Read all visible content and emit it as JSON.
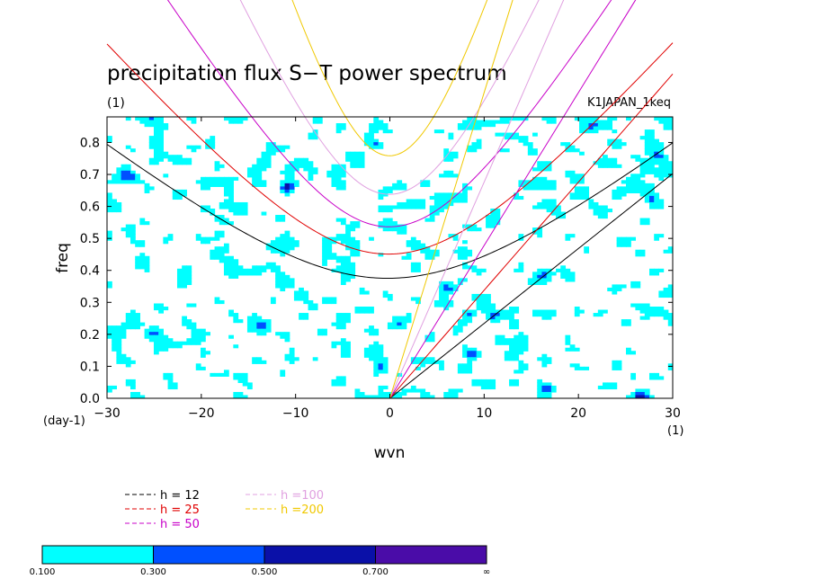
{
  "chart_data": {
    "type": "heatmap",
    "title": "precipitation flux S−T power spectrum",
    "subtitle_left": "(1)",
    "subtitle_right": "K1JAPAN_1keq",
    "xlabel": "wvn",
    "ylabel": "freq",
    "x_unit_label": "(1)",
    "y_unit_label": "(day-1)",
    "xlim": [
      -30,
      30
    ],
    "ylim": [
      0,
      0.88
    ],
    "xticks": [
      -30,
      -20,
      -10,
      0,
      10,
      20,
      30
    ],
    "yticks": [
      0,
      0.1,
      0.2,
      0.3,
      0.4,
      0.5,
      0.6,
      0.7,
      0.8
    ],
    "ytick_labels": [
      "0.0",
      "0.1",
      "0.2",
      "0.3",
      "0.4",
      "0.5",
      "0.6",
      "0.7",
      "0.8"
    ],
    "grid": false,
    "contour_levels": [
      0.1,
      0.3,
      0.5,
      0.7
    ],
    "colorbar": {
      "labels": [
        "0.100",
        "0.300",
        "0.500",
        "0.700",
        "∞"
      ],
      "colors": [
        "#00ffff",
        "#0050ff",
        "#0a10a8",
        "#4a0ca8"
      ]
    },
    "dispersion_curves": [
      {
        "label": "h = 12",
        "color": "#000000"
      },
      {
        "label": "h = 25",
        "color": "#e00000"
      },
      {
        "label": "h = 50",
        "color": "#c800c8"
      },
      {
        "label": "h =100",
        "color": "#e0a0e0"
      },
      {
        "label": "h =200",
        "color": "#f0c800"
      }
    ]
  }
}
